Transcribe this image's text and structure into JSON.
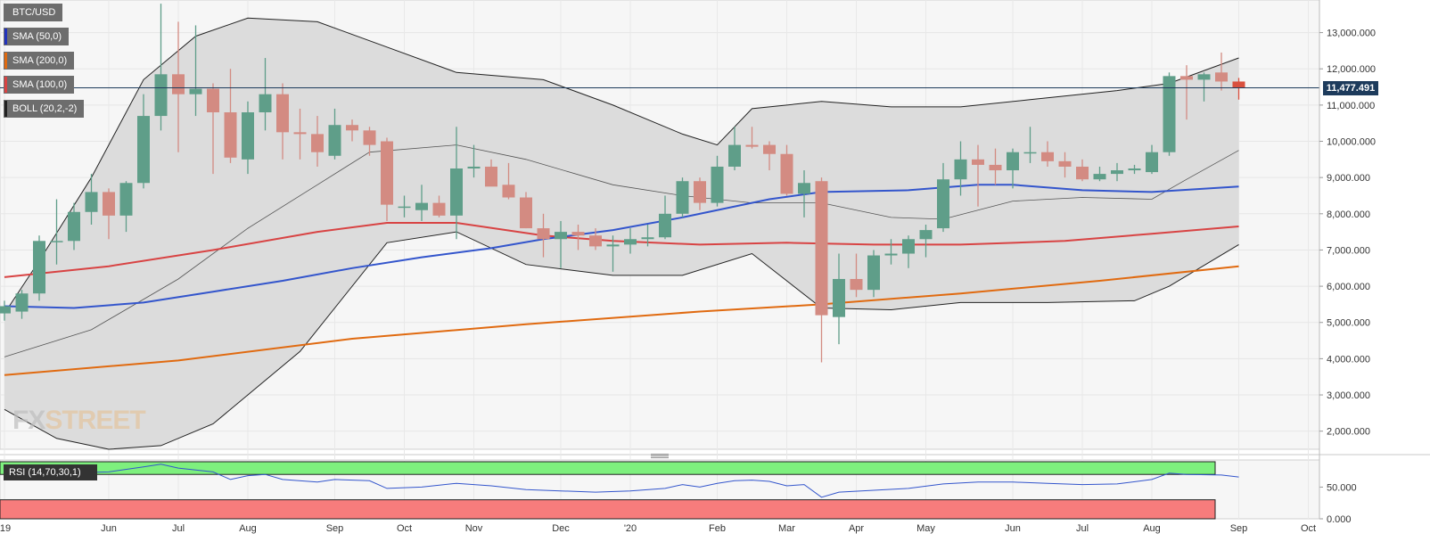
{
  "symbol": "BTC/USD",
  "last_price_label": "11,477.491",
  "watermark": {
    "prefix": "FX",
    "suffix": "STREET"
  },
  "legend": [
    {
      "label": "SMA (50,0)",
      "color": "#2233bb"
    },
    {
      "label": "SMA (200,0)",
      "color": "#e06a10"
    },
    {
      "label": "SMA (100,0)",
      "color": "#d84343"
    },
    {
      "label": "BOLL (20,2,-2)",
      "color": "#222222"
    }
  ],
  "rsi": {
    "label": "RSI (14,70,30,1)",
    "overbought": 70,
    "oversold": 30,
    "band_colors": {
      "overbought": "#7ef07e",
      "oversold": "#f77c7c"
    }
  },
  "colors": {
    "up": "#5f9e89",
    "down": "#d38b82",
    "last_down": "#d9503e",
    "boll_fill": "#dcdcdc",
    "plot_bg": "#f6f6f6"
  },
  "chart_data": {
    "type": "candlestick",
    "timeframe": "weekly",
    "ylim": [
      1500000,
      13900000
    ],
    "price_ticks": [
      "2,000.000",
      "3,000.000",
      "4,000.000",
      "5,000.000",
      "6,000.000",
      "7,000.000",
      "8,000.000",
      "9,000.000",
      "10,000.000",
      "11,000.000",
      "12,000.000",
      "13,000.000"
    ],
    "price_tick_values": [
      2000000,
      3000000,
      4000000,
      5000000,
      6000000,
      7000000,
      8000000,
      9000000,
      10000000,
      11000000,
      12000000,
      13000000
    ],
    "x_ticks": [
      "'19",
      "Jun",
      "Jul",
      "Aug",
      "Sep",
      "Oct",
      "Nov",
      "Dec",
      "'20",
      "Feb",
      "Mar",
      "Apr",
      "May",
      "Jun",
      "Jul",
      "Aug",
      "Sep",
      "Oct"
    ],
    "x_tick_weeks": [
      0,
      6,
      10,
      14,
      19,
      23,
      27,
      32,
      36,
      41,
      45,
      49,
      53,
      58,
      62,
      66,
      71,
      75
    ],
    "last_price": 11477491,
    "candles": [
      {
        "w": 0,
        "o": 5250000,
        "h": 5600000,
        "l": 5050000,
        "c": 5450000
      },
      {
        "w": 1,
        "o": 5300000,
        "h": 5900000,
        "l": 5100000,
        "c": 5800000
      },
      {
        "w": 2,
        "o": 5800000,
        "h": 7400000,
        "l": 5600000,
        "c": 7250000
      },
      {
        "w": 3,
        "o": 7250000,
        "h": 8400000,
        "l": 6600000,
        "c": 7250000
      },
      {
        "w": 4,
        "o": 7250000,
        "h": 8300000,
        "l": 7000000,
        "c": 8050000
      },
      {
        "w": 5,
        "o": 8050000,
        "h": 9100000,
        "l": 7700000,
        "c": 8600000
      },
      {
        "w": 6,
        "o": 8600000,
        "h": 8700000,
        "l": 7300000,
        "c": 7950000
      },
      {
        "w": 7,
        "o": 7950000,
        "h": 8900000,
        "l": 7500000,
        "c": 8850000
      },
      {
        "w": 8,
        "o": 8850000,
        "h": 11300000,
        "l": 8700000,
        "c": 10700000
      },
      {
        "w": 9,
        "o": 10700000,
        "h": 13800000,
        "l": 10300000,
        "c": 11850000
      },
      {
        "w": 10,
        "o": 11850000,
        "h": 13300000,
        "l": 9700000,
        "c": 11300000
      },
      {
        "w": 11,
        "o": 11300000,
        "h": 13200000,
        "l": 10700000,
        "c": 11450000
      },
      {
        "w": 12,
        "o": 11450000,
        "h": 11600000,
        "l": 9100000,
        "c": 10800000
      },
      {
        "w": 13,
        "o": 10800000,
        "h": 12000000,
        "l": 9400000,
        "c": 9550000
      },
      {
        "w": 14,
        "o": 9500000,
        "h": 11100000,
        "l": 9100000,
        "c": 10800000
      },
      {
        "w": 15,
        "o": 10800000,
        "h": 12300000,
        "l": 10300000,
        "c": 11300000
      },
      {
        "w": 16,
        "o": 11300000,
        "h": 11600000,
        "l": 9500000,
        "c": 10250000
      },
      {
        "w": 17,
        "o": 10250000,
        "h": 10900000,
        "l": 9500000,
        "c": 10200000
      },
      {
        "w": 18,
        "o": 10200000,
        "h": 10700000,
        "l": 9300000,
        "c": 9700000
      },
      {
        "w": 19,
        "o": 9600000,
        "h": 10900000,
        "l": 9500000,
        "c": 10450000
      },
      {
        "w": 20,
        "o": 10450000,
        "h": 10600000,
        "l": 10000000,
        "c": 10300000
      },
      {
        "w": 21,
        "o": 10300000,
        "h": 10400000,
        "l": 9600000,
        "c": 9900000
      },
      {
        "w": 22,
        "o": 10000000,
        "h": 10100000,
        "l": 7800000,
        "c": 8250000
      },
      {
        "w": 23,
        "o": 8200000,
        "h": 8500000,
        "l": 7900000,
        "c": 8200000
      },
      {
        "w": 24,
        "o": 8100000,
        "h": 8800000,
        "l": 7800000,
        "c": 8300000
      },
      {
        "w": 25,
        "o": 8300000,
        "h": 8500000,
        "l": 7900000,
        "c": 7950000
      },
      {
        "w": 26,
        "o": 7950000,
        "h": 10400000,
        "l": 7300000,
        "c": 9250000
      },
      {
        "w": 27,
        "o": 9250000,
        "h": 9900000,
        "l": 9000000,
        "c": 9300000
      },
      {
        "w": 28,
        "o": 9300000,
        "h": 9500000,
        "l": 8800000,
        "c": 8750000
      },
      {
        "w": 29,
        "o": 8800000,
        "h": 9400000,
        "l": 8400000,
        "c": 8450000
      },
      {
        "w": 30,
        "o": 8450000,
        "h": 8600000,
        "l": 7600000,
        "c": 7600000
      },
      {
        "w": 31,
        "o": 7600000,
        "h": 8000000,
        "l": 6800000,
        "c": 7300000
      },
      {
        "w": 32,
        "o": 7300000,
        "h": 7800000,
        "l": 6500000,
        "c": 7500000
      },
      {
        "w": 33,
        "o": 7500000,
        "h": 7700000,
        "l": 7000000,
        "c": 7400000
      },
      {
        "w": 34,
        "o": 7400000,
        "h": 7600000,
        "l": 7000000,
        "c": 7100000
      },
      {
        "w": 35,
        "o": 7100000,
        "h": 7400000,
        "l": 6400000,
        "c": 7150000
      },
      {
        "w": 36,
        "o": 7150000,
        "h": 7600000,
        "l": 6900000,
        "c": 7300000
      },
      {
        "w": 37,
        "o": 7300000,
        "h": 7700000,
        "l": 7100000,
        "c": 7350000
      },
      {
        "w": 38,
        "o": 7350000,
        "h": 8500000,
        "l": 7300000,
        "c": 8000000
      },
      {
        "w": 39,
        "o": 8000000,
        "h": 9000000,
        "l": 7900000,
        "c": 8900000
      },
      {
        "w": 40,
        "o": 8900000,
        "h": 9000000,
        "l": 8100000,
        "c": 8300000
      },
      {
        "w": 41,
        "o": 8300000,
        "h": 9600000,
        "l": 8200000,
        "c": 9300000
      },
      {
        "w": 42,
        "o": 9300000,
        "h": 10400000,
        "l": 9200000,
        "c": 9900000
      },
      {
        "w": 43,
        "o": 9900000,
        "h": 10400000,
        "l": 9800000,
        "c": 9850000
      },
      {
        "w": 44,
        "o": 9900000,
        "h": 10000000,
        "l": 9200000,
        "c": 9650000
      },
      {
        "w": 45,
        "o": 9650000,
        "h": 9900000,
        "l": 8500000,
        "c": 8550000
      },
      {
        "w": 46,
        "o": 8550000,
        "h": 9200000,
        "l": 7900000,
        "c": 8850000
      },
      {
        "w": 47,
        "o": 8900000,
        "h": 9000000,
        "l": 3900000,
        "c": 5200000
      },
      {
        "w": 48,
        "o": 5150000,
        "h": 6900000,
        "l": 4400000,
        "c": 6200000
      },
      {
        "w": 49,
        "o": 6200000,
        "h": 6900000,
        "l": 5700000,
        "c": 5900000
      },
      {
        "w": 50,
        "o": 5900000,
        "h": 7000000,
        "l": 5700000,
        "c": 6850000
      },
      {
        "w": 51,
        "o": 6850000,
        "h": 7300000,
        "l": 6600000,
        "c": 6900000
      },
      {
        "w": 52,
        "o": 6900000,
        "h": 7400000,
        "l": 6500000,
        "c": 7300000
      },
      {
        "w": 53,
        "o": 7300000,
        "h": 7700000,
        "l": 6800000,
        "c": 7550000
      },
      {
        "w": 54,
        "o": 7600000,
        "h": 9400000,
        "l": 7500000,
        "c": 8950000
      },
      {
        "w": 55,
        "o": 8950000,
        "h": 10000000,
        "l": 8500000,
        "c": 9500000
      },
      {
        "w": 56,
        "o": 9500000,
        "h": 9900000,
        "l": 8200000,
        "c": 9350000
      },
      {
        "w": 57,
        "o": 9350000,
        "h": 9800000,
        "l": 8800000,
        "c": 9200000
      },
      {
        "w": 58,
        "o": 9200000,
        "h": 9800000,
        "l": 8700000,
        "c": 9700000
      },
      {
        "w": 59,
        "o": 9700000,
        "h": 10400000,
        "l": 9400000,
        "c": 9700000
      },
      {
        "w": 60,
        "o": 9700000,
        "h": 10000000,
        "l": 9300000,
        "c": 9450000
      },
      {
        "w": 61,
        "o": 9450000,
        "h": 9700000,
        "l": 9000000,
        "c": 9300000
      },
      {
        "w": 62,
        "o": 9300000,
        "h": 9500000,
        "l": 8900000,
        "c": 8950000
      },
      {
        "w": 63,
        "o": 8950000,
        "h": 9300000,
        "l": 8900000,
        "c": 9100000
      },
      {
        "w": 64,
        "o": 9100000,
        "h": 9400000,
        "l": 8900000,
        "c": 9200000
      },
      {
        "w": 65,
        "o": 9200000,
        "h": 9350000,
        "l": 9100000,
        "c": 9250000
      },
      {
        "w": 66,
        "o": 9150000,
        "h": 9900000,
        "l": 9100000,
        "c": 9700000
      },
      {
        "w": 67,
        "o": 9700000,
        "h": 11900000,
        "l": 9600000,
        "c": 11800000
      },
      {
        "w": 68,
        "o": 11800000,
        "h": 12100000,
        "l": 10600000,
        "c": 11700000
      },
      {
        "w": 69,
        "o": 11700000,
        "h": 11900000,
        "l": 11100000,
        "c": 11850000
      },
      {
        "w": 70,
        "o": 11900000,
        "h": 12450000,
        "l": 11400000,
        "c": 11650000
      },
      {
        "w": 71,
        "o": 11650000,
        "h": 11750000,
        "l": 11150000,
        "c": 11477491
      }
    ],
    "indicators": {
      "sma50": {
        "color": "#3355cc",
        "points": [
          [
            0,
            5450000
          ],
          [
            4,
            5400000
          ],
          [
            8,
            5550000
          ],
          [
            12,
            5850000
          ],
          [
            16,
            6150000
          ],
          [
            20,
            6500000
          ],
          [
            24,
            6800000
          ],
          [
            28,
            7050000
          ],
          [
            31,
            7300000
          ],
          [
            35,
            7550000
          ],
          [
            39,
            7900000
          ],
          [
            44,
            8400000
          ],
          [
            47,
            8600000
          ],
          [
            52,
            8650000
          ],
          [
            56,
            8800000
          ],
          [
            58,
            8800000
          ],
          [
            62,
            8650000
          ],
          [
            66,
            8600000
          ],
          [
            71,
            8750000
          ]
        ]
      },
      "sma100": {
        "color": "#d84343",
        "points": [
          [
            0,
            6250000
          ],
          [
            6,
            6550000
          ],
          [
            12,
            7000000
          ],
          [
            18,
            7500000
          ],
          [
            22,
            7750000
          ],
          [
            26,
            7750000
          ],
          [
            31,
            7400000
          ],
          [
            35,
            7250000
          ],
          [
            40,
            7150000
          ],
          [
            45,
            7200000
          ],
          [
            50,
            7150000
          ],
          [
            55,
            7150000
          ],
          [
            61,
            7250000
          ],
          [
            66,
            7450000
          ],
          [
            71,
            7650000
          ]
        ]
      },
      "sma200": {
        "color": "#e06a10",
        "points": [
          [
            0,
            3550000
          ],
          [
            10,
            3950000
          ],
          [
            20,
            4550000
          ],
          [
            30,
            4950000
          ],
          [
            40,
            5300000
          ],
          [
            47,
            5500000
          ],
          [
            55,
            5800000
          ],
          [
            63,
            6150000
          ],
          [
            71,
            6550000
          ]
        ]
      },
      "boll_upper": [
        [
          0,
          5250000
        ],
        [
          2,
          6700000
        ],
        [
          5,
          9000000
        ],
        [
          8,
          11700000
        ],
        [
          11,
          12900000
        ],
        [
          14,
          13400000
        ],
        [
          18,
          13300000
        ],
        [
          22,
          12600000
        ],
        [
          26,
          11900000
        ],
        [
          31,
          11700000
        ],
        [
          35,
          11000000
        ],
        [
          39,
          10200000
        ],
        [
          41,
          9900000
        ],
        [
          43,
          10900000
        ],
        [
          47,
          11100000
        ],
        [
          51,
          10950000
        ],
        [
          55,
          10950000
        ],
        [
          59,
          11150000
        ],
        [
          64,
          11400000
        ],
        [
          67,
          11600000
        ],
        [
          71,
          12300000
        ]
      ],
      "boll_middle": [
        [
          0,
          4050000
        ],
        [
          5,
          4800000
        ],
        [
          10,
          6200000
        ],
        [
          14,
          7600000
        ],
        [
          18,
          8800000
        ],
        [
          21,
          9700000
        ],
        [
          26,
          9900000
        ],
        [
          30,
          9500000
        ],
        [
          35,
          8800000
        ],
        [
          39,
          8500000
        ],
        [
          43,
          8300000
        ],
        [
          47,
          8300000
        ],
        [
          51,
          7900000
        ],
        [
          54,
          7850000
        ],
        [
          58,
          8350000
        ],
        [
          62,
          8450000
        ],
        [
          66,
          8400000
        ],
        [
          68,
          8950000
        ],
        [
          71,
          9750000
        ]
      ],
      "boll_lower": [
        [
          0,
          2600000
        ],
        [
          3,
          1800000
        ],
        [
          6,
          1500000
        ],
        [
          9,
          1600000
        ],
        [
          12,
          2200000
        ],
        [
          17,
          4200000
        ],
        [
          22,
          7200000
        ],
        [
          26,
          7500000
        ],
        [
          30,
          6600000
        ],
        [
          35,
          6300000
        ],
        [
          39,
          6300000
        ],
        [
          43,
          6900000
        ],
        [
          47,
          5400000
        ],
        [
          51,
          5350000
        ],
        [
          55,
          5550000
        ],
        [
          60,
          5550000
        ],
        [
          65,
          5600000
        ],
        [
          67,
          6000000
        ],
        [
          71,
          7150000
        ]
      ]
    },
    "rsi_values": [
      [
        0,
        66
      ],
      [
        3,
        72
      ],
      [
        6,
        74
      ],
      [
        8,
        82
      ],
      [
        9,
        86
      ],
      [
        10,
        80
      ],
      [
        12,
        74
      ],
      [
        13,
        62
      ],
      [
        14,
        68
      ],
      [
        15,
        70
      ],
      [
        16,
        62
      ],
      [
        18,
        58
      ],
      [
        19,
        62
      ],
      [
        21,
        60
      ],
      [
        22,
        48
      ],
      [
        24,
        50
      ],
      [
        26,
        56
      ],
      [
        28,
        52
      ],
      [
        30,
        46
      ],
      [
        32,
        44
      ],
      [
        34,
        42
      ],
      [
        36,
        44
      ],
      [
        38,
        48
      ],
      [
        39,
        54
      ],
      [
        40,
        50
      ],
      [
        41,
        56
      ],
      [
        42,
        60
      ],
      [
        43,
        61
      ],
      [
        44,
        59
      ],
      [
        45,
        52
      ],
      [
        46,
        54
      ],
      [
        47,
        34
      ],
      [
        48,
        42
      ],
      [
        50,
        45
      ],
      [
        52,
        48
      ],
      [
        54,
        55
      ],
      [
        56,
        58
      ],
      [
        58,
        58
      ],
      [
        60,
        56
      ],
      [
        62,
        54
      ],
      [
        64,
        55
      ],
      [
        66,
        62
      ],
      [
        67,
        72
      ],
      [
        68,
        70
      ],
      [
        70,
        69
      ],
      [
        71,
        66
      ]
    ],
    "rsi_ylim": [
      0,
      90
    ],
    "rsi_ticks": [
      "0.000",
      "50.000"
    ],
    "rsi_tick_values": [
      0,
      50
    ]
  }
}
